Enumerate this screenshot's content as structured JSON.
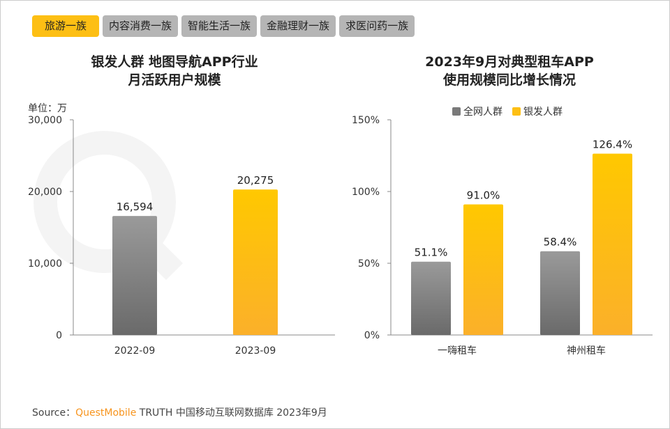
{
  "tabs": [
    {
      "label": "旅游一族",
      "active": true
    },
    {
      "label": "内容消费一族",
      "active": false
    },
    {
      "label": "智能生活一族",
      "active": false
    },
    {
      "label": "金融理财一族",
      "active": false
    },
    {
      "label": "求医问药一族",
      "active": false
    }
  ],
  "watermark": "QUESTMOBILE",
  "source": {
    "prefix": "Source：",
    "brand": "QuestMobile",
    "text": " TRUTH 中国移动互联网数据库 2023年9月"
  },
  "colors": {
    "gray": "#7a7a7a",
    "yellow": "#fdbf14",
    "active_tab": "#fdbf14",
    "tab": "#b5b5b5"
  },
  "chart_data": [
    {
      "type": "bar",
      "title": [
        "银发人群 地图导航APP行业",
        "月活跃用户规模"
      ],
      "unit_label": "单位：万",
      "categories": [
        "2022-09",
        "2023-09"
      ],
      "values": [
        16594,
        20275
      ],
      "value_labels": [
        "16,594",
        "20,275"
      ],
      "bar_colors": [
        "gray",
        "yellow"
      ],
      "ylim": [
        0,
        30000
      ],
      "yticks": [
        0,
        10000,
        20000,
        30000
      ],
      "ytick_labels": [
        "0",
        "10,000",
        "20,000",
        "30,000"
      ],
      "grid": false
    },
    {
      "type": "bar",
      "title": [
        "2023年9月对典型租车APP",
        "使用规模同比增长情况"
      ],
      "categories": [
        "一嗨租车",
        "神州租车"
      ],
      "series": [
        {
          "name": "全网人群",
          "color": "gray",
          "values": [
            51.1,
            58.4
          ],
          "labels": [
            "51.1%",
            "58.4%"
          ]
        },
        {
          "name": "银发人群",
          "color": "yellow",
          "values": [
            91.0,
            126.4
          ],
          "labels": [
            "91.0%",
            "126.4%"
          ]
        }
      ],
      "ylim": [
        0,
        150
      ],
      "yticks": [
        0,
        50,
        100,
        150
      ],
      "ytick_labels": [
        "0%",
        "50%",
        "100%",
        "150%"
      ],
      "legend": "top-center",
      "grid": false
    }
  ]
}
